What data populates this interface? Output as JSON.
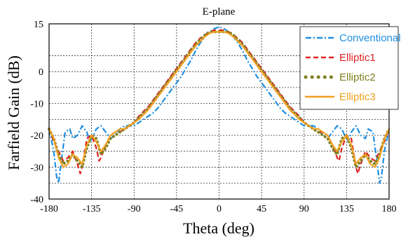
{
  "chart_data": {
    "type": "line",
    "title": "E-plane",
    "xlabel": "Theta (deg)",
    "ylabel": "Farfield Gain (dB)",
    "xlim": [
      -180,
      180
    ],
    "ylim": [
      -40,
      15
    ],
    "xticks": [
      -180,
      -135,
      -90,
      -45,
      0,
      45,
      90,
      135,
      180
    ],
    "yticks": [
      15,
      0,
      -10,
      -20,
      -30,
      -40
    ],
    "ygrid": [
      15,
      5,
      0,
      -5,
      -10,
      -15,
      -20,
      -25,
      -30,
      -35,
      -40
    ],
    "grid": true,
    "legend_position": "top-right",
    "series": [
      {
        "name": "Conventional",
        "color": "#1f8fe0",
        "dash": "dashdot",
        "x": [
          -180,
          -175,
          -172,
          -170,
          -167,
          -163,
          -158,
          -155,
          -150,
          -145,
          -140,
          -137,
          -133,
          -130,
          -125,
          -120,
          -115,
          -110,
          -105,
          -100,
          -95,
          -90,
          -85,
          -80,
          -75,
          -70,
          -65,
          -60,
          -55,
          -50,
          -45,
          -40,
          -35,
          -30,
          -25,
          -20,
          -15,
          -10,
          -5,
          0,
          5,
          10,
          15,
          20,
          25,
          30,
          35,
          40,
          45,
          50,
          55,
          60,
          65,
          70,
          75,
          80,
          85,
          90,
          95,
          100,
          105,
          110,
          115,
          120,
          125,
          130,
          133,
          137,
          140,
          145,
          150,
          155,
          158,
          163,
          167,
          170,
          172,
          175,
          180
        ],
        "y": [
          -18,
          -25,
          -33,
          -35,
          -28,
          -19,
          -18,
          -21,
          -20,
          -17,
          -19,
          -22,
          -20,
          -18,
          -17,
          -19,
          -21,
          -20,
          -18,
          -17,
          -17,
          -17,
          -16,
          -15,
          -14,
          -13,
          -11.5,
          -9.5,
          -7.5,
          -5.5,
          -3.5,
          -1.5,
          1,
          3.5,
          6.5,
          9,
          11,
          12.5,
          13.5,
          14,
          13.5,
          12.5,
          11,
          9,
          6.5,
          3.5,
          1,
          -1.5,
          -3.5,
          -5.5,
          -7.5,
          -9.5,
          -11.5,
          -13,
          -14,
          -15,
          -16,
          -17,
          -17,
          -17,
          -18,
          -20,
          -21,
          -19,
          -17,
          -18,
          -20,
          -22,
          -19,
          -17,
          -20,
          -21,
          -18,
          -19,
          -28,
          -35,
          -33,
          -25,
          -18
        ]
      },
      {
        "name": "Elliptic1",
        "color": "#e02020",
        "dash": "dash",
        "x": [
          -180,
          -175,
          -170,
          -165,
          -160,
          -155,
          -150,
          -147,
          -145,
          -140,
          -135,
          -130,
          -127,
          -125,
          -120,
          -115,
          -110,
          -105,
          -100,
          -95,
          -90,
          -85,
          -80,
          -75,
          -70,
          -65,
          -60,
          -55,
          -50,
          -45,
          -40,
          -35,
          -30,
          -25,
          -20,
          -15,
          -10,
          -5,
          0,
          5,
          10,
          15,
          20,
          25,
          30,
          35,
          40,
          45,
          50,
          55,
          60,
          65,
          70,
          75,
          80,
          85,
          90,
          95,
          100,
          105,
          110,
          115,
          120,
          125,
          127,
          130,
          135,
          140,
          145,
          147,
          150,
          155,
          160,
          165,
          170,
          175,
          180
        ],
        "y": [
          -18,
          -22,
          -25,
          -28,
          -27,
          -25,
          -29,
          -32,
          -30,
          -21,
          -20,
          -24,
          -28,
          -27,
          -23,
          -20,
          -19,
          -19,
          -18,
          -17,
          -16,
          -14,
          -12.5,
          -11,
          -9,
          -7,
          -5,
          -3,
          -1,
          1,
          3,
          5,
          7,
          9,
          10.5,
          11.5,
          12.5,
          13,
          13,
          13,
          12.5,
          11.5,
          10.5,
          9,
          7,
          5,
          3,
          1,
          -1,
          -3,
          -5,
          -7,
          -9,
          -11,
          -12.5,
          -14,
          -16,
          -17,
          -18,
          -19,
          -19,
          -20,
          -23,
          -27,
          -28,
          -24,
          -20,
          -21,
          -30,
          -32,
          -29,
          -25,
          -27,
          -28,
          -25,
          -22,
          -18
        ]
      },
      {
        "name": "Elliptic2",
        "color": "#808020",
        "dash": "dot",
        "x": [
          -180,
          -175,
          -170,
          -165,
          -160,
          -155,
          -150,
          -145,
          -140,
          -135,
          -130,
          -125,
          -120,
          -115,
          -110,
          -105,
          -100,
          -95,
          -90,
          -85,
          -80,
          -75,
          -70,
          -65,
          -60,
          -55,
          -50,
          -45,
          -40,
          -35,
          -30,
          -25,
          -20,
          -15,
          -10,
          -5,
          0,
          5,
          10,
          15,
          20,
          25,
          30,
          35,
          40,
          45,
          50,
          55,
          60,
          65,
          70,
          75,
          80,
          85,
          90,
          95,
          100,
          105,
          110,
          115,
          120,
          125,
          130,
          135,
          140,
          145,
          150,
          155,
          160,
          165,
          170,
          175,
          180
        ],
        "y": [
          -18,
          -21,
          -26,
          -29,
          -28,
          -26,
          -28,
          -30,
          -24,
          -20,
          -21,
          -26,
          -24,
          -21,
          -20,
          -19,
          -18,
          -17,
          -16,
          -14.5,
          -13,
          -11.5,
          -9.5,
          -7.5,
          -5.5,
          -3.5,
          -1.5,
          0.5,
          2.5,
          4.5,
          6.5,
          8.5,
          10,
          11.5,
          12.5,
          12.5,
          12.5,
          12.5,
          12.5,
          11.5,
          10,
          8.5,
          6.5,
          4.5,
          2.5,
          0.5,
          -1.5,
          -3.5,
          -5.5,
          -7.5,
          -9.5,
          -11.5,
          -13,
          -14.5,
          -16,
          -17,
          -18,
          -19,
          -20,
          -21,
          -24,
          -26,
          -21,
          -20,
          -24,
          -30,
          -28,
          -26,
          -28,
          -29,
          -26,
          -21,
          -18
        ]
      },
      {
        "name": "Elliptic3",
        "color": "#f0a020",
        "dash": "solid",
        "x": [
          -180,
          -175,
          -170,
          -165,
          -160,
          -155,
          -150,
          -145,
          -140,
          -135,
          -130,
          -125,
          -120,
          -115,
          -110,
          -105,
          -100,
          -95,
          -90,
          -85,
          -80,
          -75,
          -70,
          -65,
          -60,
          -55,
          -50,
          -45,
          -40,
          -35,
          -30,
          -25,
          -20,
          -15,
          -10,
          -5,
          0,
          5,
          10,
          15,
          20,
          25,
          30,
          35,
          40,
          45,
          50,
          55,
          60,
          65,
          70,
          75,
          80,
          85,
          90,
          95,
          100,
          105,
          110,
          115,
          120,
          125,
          130,
          135,
          140,
          145,
          150,
          155,
          160,
          165,
          170,
          175,
          180
        ],
        "y": [
          -18,
          -21,
          -27,
          -30,
          -29,
          -26,
          -27,
          -29,
          -23,
          -20,
          -22,
          -25,
          -23,
          -20,
          -19,
          -18,
          -18,
          -17,
          -16,
          -15,
          -13.5,
          -12,
          -10,
          -8,
          -6,
          -4,
          -2,
          0,
          2,
          4,
          6,
          8,
          9.5,
          11,
          12,
          12.5,
          12.5,
          12.5,
          12,
          11,
          9.5,
          8,
          6,
          4,
          2,
          0,
          -2,
          -4,
          -6,
          -8,
          -10,
          -12,
          -13.5,
          -15,
          -16,
          -17,
          -18,
          -18,
          -19,
          -20,
          -23,
          -25,
          -22,
          -20,
          -23,
          -29,
          -27,
          -26,
          -29,
          -30,
          -27,
          -21,
          -18
        ]
      }
    ]
  }
}
